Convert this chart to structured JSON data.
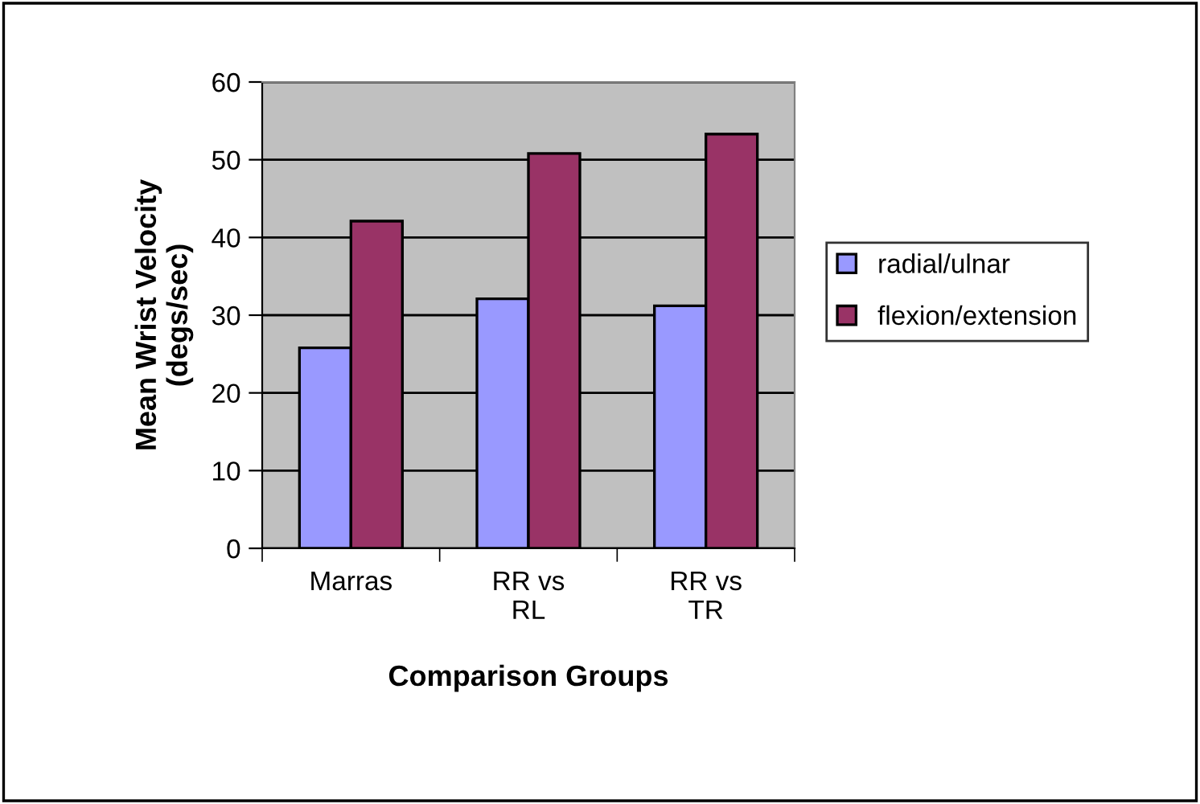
{
  "chart_data": {
    "type": "bar",
    "xlabel": "Comparison Groups",
    "ylabel": "Mean Wrist Velocity\n(degs/sec)",
    "categories": [
      "Marras",
      "RR vs\nRL",
      "RR vs\nTR"
    ],
    "series": [
      {
        "name": "radial/ulnar",
        "color": "#9999ff",
        "values": [
          25.8,
          32.1,
          31.2
        ]
      },
      {
        "name": "flexion/extension",
        "color": "#993366",
        "values": [
          42.1,
          50.8,
          53.3
        ]
      }
    ],
    "ylim": [
      0,
      60
    ],
    "yticks": [
      0,
      10,
      20,
      30,
      40,
      50,
      60
    ],
    "grid": "y",
    "legend": "right"
  }
}
